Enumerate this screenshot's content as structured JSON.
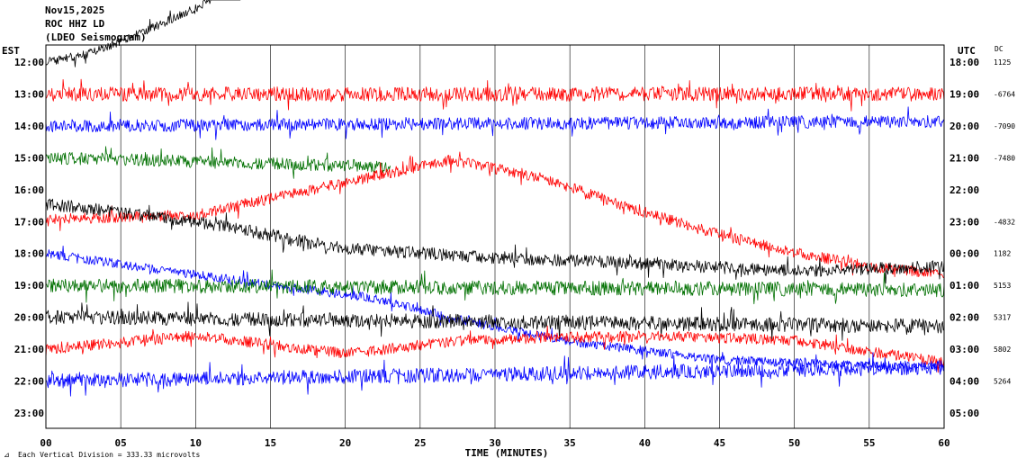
{
  "chart_data": {
    "type": "line",
    "header": [
      "Nov15,2025",
      "ROC HHZ LD",
      "(LDEO Seismogram)"
    ],
    "left_axis_title": "EST",
    "right_axis_title": "UTC",
    "dc_title": "DC",
    "xlabel": "TIME (MINUTES)",
    "footer": "Each Vertical Division =  333.33 microvolts",
    "x_ticks": [
      "00",
      "05",
      "10",
      "15",
      "20",
      "25",
      "30",
      "35",
      "40",
      "45",
      "50",
      "55",
      "60"
    ],
    "xlim": [
      0,
      60
    ],
    "colors": {
      "red": "#ff0000",
      "blue": "#0000ff",
      "green": "#007000",
      "black": "#000000",
      "grid": "#000000"
    },
    "rows": [
      {
        "est": "12:00",
        "utc": "18:00",
        "dc": "1125"
      },
      {
        "est": "13:00",
        "utc": "19:00",
        "dc": "-6764"
      },
      {
        "est": "14:00",
        "utc": "20:00",
        "dc": "-7090"
      },
      {
        "est": "15:00",
        "utc": "21:00",
        "dc": "-7480"
      },
      {
        "est": "16:00",
        "utc": "22:00",
        "dc": ""
      },
      {
        "est": "17:00",
        "utc": "23:00",
        "dc": "-4832"
      },
      {
        "est": "18:00",
        "utc": "00:00",
        "dc": "1182"
      },
      {
        "est": "19:00",
        "utc": "01:00",
        "dc": "5153"
      },
      {
        "est": "20:00",
        "utc": "02:00",
        "dc": "5317"
      },
      {
        "est": "21:00",
        "utc": "03:00",
        "dc": "5802"
      },
      {
        "est": "22:00",
        "utc": "04:00",
        "dc": "5264"
      },
      {
        "est": "23:00",
        "utc": "05:00",
        "dc": ""
      }
    ],
    "series": [
      {
        "row": 0,
        "color": "black",
        "amp": 5,
        "drift": [
          [
            0,
            0
          ],
          [
            3,
            -10
          ],
          [
            6,
            -30
          ],
          [
            10,
            -60
          ],
          [
            13,
            -90
          ]
        ],
        "end": 13
      },
      {
        "row": 1,
        "color": "red",
        "amp": 8,
        "drift": [
          [
            0,
            0
          ],
          [
            60,
            0
          ]
        ],
        "end": 60
      },
      {
        "row": 2,
        "color": "blue",
        "amp": 7,
        "drift": [
          [
            0,
            0
          ],
          [
            60,
            -5
          ]
        ],
        "end": 60
      },
      {
        "row": 3,
        "color": "green",
        "amp": 7,
        "drift": [
          [
            0,
            0
          ],
          [
            23,
            10
          ]
        ],
        "end": 23
      },
      {
        "row": 4,
        "color": "red",
        "amp": 6,
        "drift": [
          [
            0,
            33
          ],
          [
            10,
            28
          ],
          [
            20,
            -8
          ],
          [
            27,
            -33
          ],
          [
            33,
            -14
          ],
          [
            39,
            20
          ],
          [
            45,
            50
          ],
          [
            50,
            70
          ],
          [
            55,
            85
          ],
          [
            60,
            95
          ]
        ],
        "end": 60
      },
      {
        "row": 5,
        "color": "black",
        "amp": 7,
        "drift": [
          [
            0,
            -20
          ],
          [
            10,
            0
          ],
          [
            20,
            30
          ],
          [
            30,
            40
          ],
          [
            40,
            47
          ],
          [
            50,
            55
          ],
          [
            60,
            50
          ]
        ],
        "end": 60
      },
      {
        "row": 6,
        "color": "blue",
        "amp": 5,
        "drift": [
          [
            0,
            0
          ],
          [
            5,
            12
          ],
          [
            15,
            35
          ],
          [
            22,
            50
          ],
          [
            28,
            75
          ],
          [
            35,
            98
          ],
          [
            45,
            118
          ],
          [
            55,
            125
          ],
          [
            60,
            126
          ]
        ],
        "end": 60
      },
      {
        "row": 7,
        "color": "green",
        "amp": 8,
        "drift": [
          [
            0,
            0
          ],
          [
            60,
            5
          ]
        ],
        "end": 60
      },
      {
        "row": 8,
        "color": "black",
        "amp": 8,
        "drift": [
          [
            0,
            0
          ],
          [
            60,
            10
          ]
        ],
        "end": 60
      },
      {
        "row": 9,
        "color": "red",
        "amp": 6,
        "drift": [
          [
            0,
            0
          ],
          [
            10,
            -15
          ],
          [
            20,
            5
          ],
          [
            28,
            -10
          ],
          [
            40,
            -15
          ],
          [
            50,
            -10
          ],
          [
            60,
            15
          ]
        ],
        "end": 60
      },
      {
        "row": 10,
        "color": "blue",
        "amp": 8,
        "drift": [
          [
            0,
            0
          ],
          [
            60,
            -15
          ]
        ],
        "end": 60
      }
    ]
  }
}
